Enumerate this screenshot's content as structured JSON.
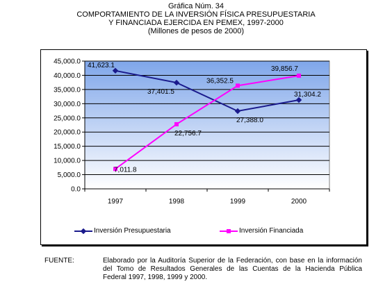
{
  "heading": {
    "line1": "Gráfica Núm. 34",
    "line2": "COMPORTAMIENTO DE LA INVERSIÓN FÍSICA PRESUPUESTARIA",
    "line3": "Y FINANCIADA EJERCIDA EN PEMEX, 1997-2000",
    "line4": "(Millones de pesos de 2000)"
  },
  "chart_data": {
    "type": "line",
    "categories": [
      "1997",
      "1998",
      "1999",
      "2000"
    ],
    "ylim": [
      0,
      45000
    ],
    "yticks": [
      "0.0",
      "5,000.0",
      "10,000.0",
      "15,000.0",
      "20,000.0",
      "25,000.0",
      "30,000.0",
      "35,000.0",
      "40,000.0",
      "45,000.0"
    ],
    "grid": true,
    "legend_position": "bottom",
    "series": [
      {
        "name": "Inversión Presupuestaria",
        "color": "#1a1a8c",
        "values": [
          41623.1,
          37401.5,
          27388.0,
          31304.2
        ],
        "labels": [
          "41,623.1",
          "37,401.5",
          "27,388.0",
          "31,304.2"
        ]
      },
      {
        "name": "Inversión Financiada",
        "color": "#ff00ff",
        "values": [
          7011.8,
          22756.7,
          36352.5,
          39856.7
        ],
        "labels": [
          "7,011.8",
          "22,756.7",
          "36,352.5",
          "39,856.7"
        ]
      }
    ]
  },
  "footer": {
    "label": "FUENTE:",
    "text_line1": "Elaborado por la Auditoría Superior de la Federación, con base en la información",
    "text_line2": "del Tomo de Resultados Generales de las Cuentas de la Hacienda Pública",
    "text_line3": "Federal 1997, 1998, 1999 y 2000."
  }
}
